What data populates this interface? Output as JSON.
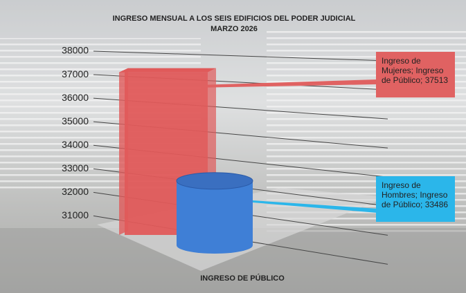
{
  "chart_data": {
    "type": "bar3d",
    "title": "INGRESO MENSUAL A LOS SEIS EDIFICIOS DEL PODER JUDICIAL",
    "subtitle": "MARZO 2026",
    "categories": [
      "INGRESO DE PÚBLICO"
    ],
    "series": [
      {
        "color": "#e05a5a",
        "values": [
          37513
        ],
        "value_labels": [
          "Ingreso de Mujeres; Ingreso de Público; 37513"
        ]
      },
      {
        "color": "#3f7fd6",
        "values": [
          33486
        ],
        "value_labels": [
          "Ingreso de Hombres; Ingreso de Público; 33486"
        ]
      }
    ],
    "ylim": [
      30600,
      38000
    ],
    "yticks": [
      31000,
      32000,
      33000,
      34000,
      35000,
      36000,
      37000,
      38000
    ],
    "grid": true
  }
}
